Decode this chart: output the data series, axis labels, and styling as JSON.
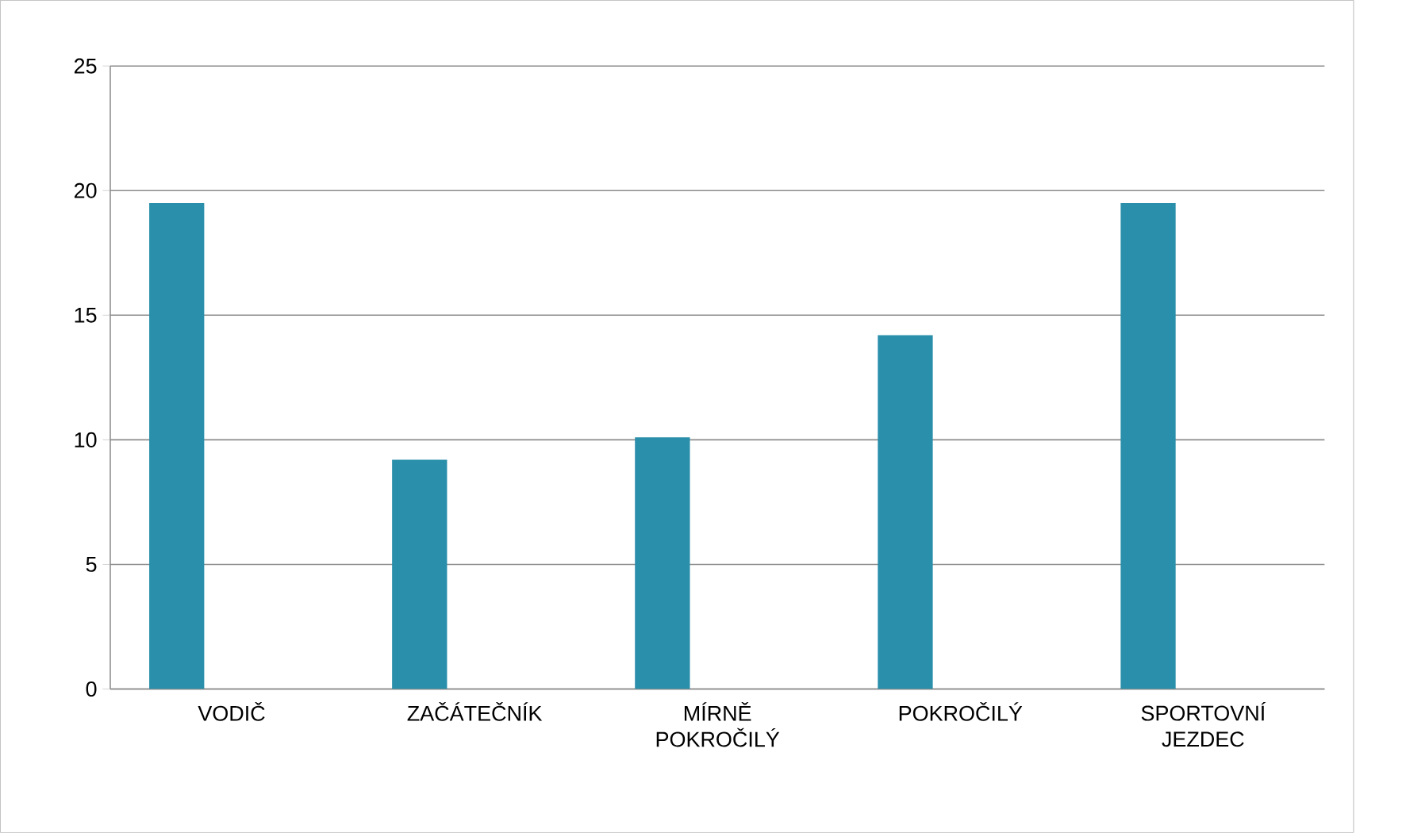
{
  "chart_data": {
    "type": "bar",
    "categories": [
      "VODIČ",
      "ZAČÁTEČNÍK",
      "MÍRNĚ POKROČILÝ",
      "POKROČILÝ",
      "SPORTOVNÍ JEZDEC"
    ],
    "values": [
      19.5,
      9.2,
      10.1,
      14.2,
      19.5
    ],
    "color": "#2a8faa",
    "ylim": [
      0,
      25
    ],
    "yticks": [
      0,
      5,
      10,
      15,
      20,
      25
    ],
    "grid": "y"
  }
}
